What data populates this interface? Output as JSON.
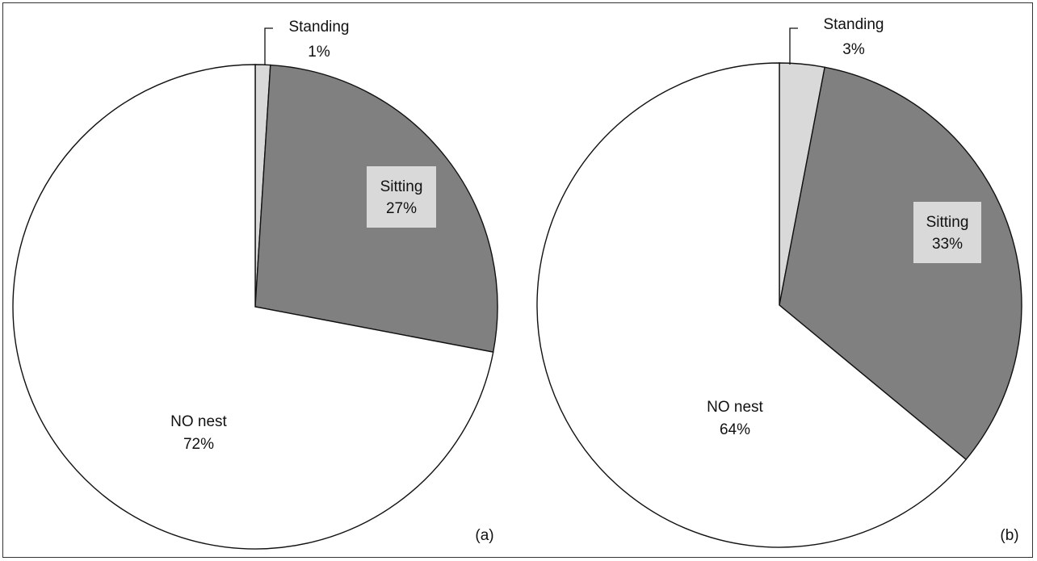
{
  "chart_data": [
    {
      "type": "pie",
      "panel_label": "(a)",
      "start_angle": "top",
      "direction": "clockwise",
      "slices": [
        {
          "name": "Standing",
          "value": 1,
          "value_label": "1%",
          "color": "#d9d9d9"
        },
        {
          "name": "Sitting",
          "value": 27,
          "value_label": "27%",
          "color": "#808080"
        },
        {
          "name": "NO nest",
          "value": 72,
          "value_label": "72%",
          "color": "#ffffff"
        }
      ]
    },
    {
      "type": "pie",
      "panel_label": "(b)",
      "start_angle": "top",
      "direction": "clockwise",
      "slices": [
        {
          "name": "Standing",
          "value": 3,
          "value_label": "3%",
          "color": "#d9d9d9"
        },
        {
          "name": "Sitting",
          "value": 33,
          "value_label": "33%",
          "color": "#808080"
        },
        {
          "name": "NO nest",
          "value": 64,
          "value_label": "64%",
          "color": "#ffffff"
        }
      ]
    }
  ]
}
